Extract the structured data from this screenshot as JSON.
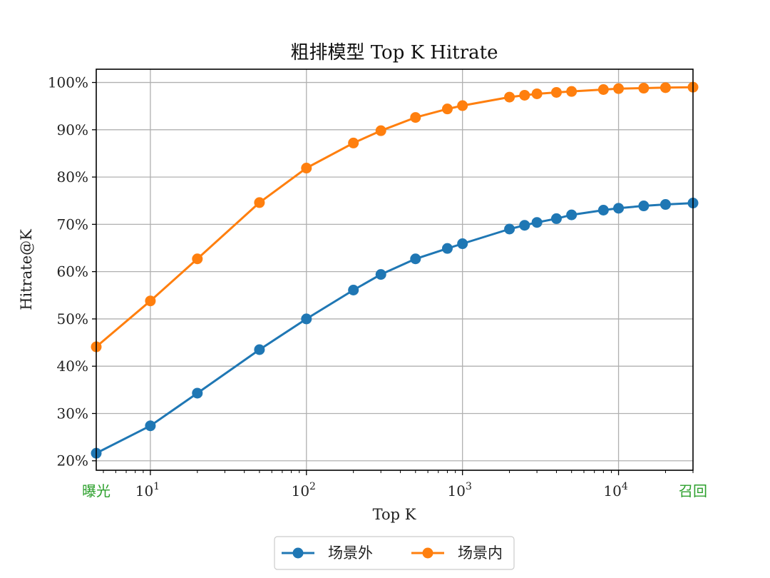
{
  "chart_data": {
    "type": "line",
    "title": "粗排模型 Top K Hitrate",
    "xlabel": "Top K",
    "ylabel": "Hitrate@K",
    "x_scale": "log",
    "xlim": [
      4.5,
      30000
    ],
    "ylim": [
      18,
      102.8
    ],
    "x_tick_labels": [
      {
        "value": 10,
        "base": "10",
        "exp": "1"
      },
      {
        "value": 100,
        "base": "10",
        "exp": "2"
      },
      {
        "value": 1000,
        "base": "10",
        "exp": "3"
      },
      {
        "value": 10000,
        "base": "10",
        "exp": "4"
      }
    ],
    "x_end_labels": {
      "left": "曝光",
      "right": "召回",
      "color": "#2ca02c"
    },
    "y_ticks": [
      20,
      30,
      40,
      50,
      60,
      70,
      80,
      90,
      100
    ],
    "y_tick_labels": [
      "20%",
      "30%",
      "40%",
      "50%",
      "60%",
      "70%",
      "80%",
      "90%",
      "100%"
    ],
    "grid": true,
    "legend_position": "bottom-center",
    "x": [
      4.5,
      10,
      20,
      50,
      100,
      200,
      300,
      500,
      800,
      1000,
      2000,
      2500,
      3000,
      4000,
      5000,
      8000,
      10000,
      14500,
      20000,
      30000
    ],
    "series": [
      {
        "name": "场景外",
        "color": "#1f77b4",
        "values": [
          21.6,
          27.4,
          34.3,
          43.5,
          50.0,
          56.1,
          59.4,
          62.7,
          64.9,
          65.9,
          69.0,
          69.8,
          70.4,
          71.2,
          72.0,
          73.0,
          73.4,
          73.9,
          74.2,
          74.5
        ]
      },
      {
        "name": "场景内",
        "color": "#ff7f0e",
        "values": [
          44.1,
          53.8,
          62.7,
          74.6,
          81.9,
          87.2,
          89.8,
          92.6,
          94.4,
          95.1,
          96.9,
          97.3,
          97.6,
          97.9,
          98.1,
          98.5,
          98.7,
          98.8,
          98.9,
          99.0
        ]
      }
    ]
  }
}
